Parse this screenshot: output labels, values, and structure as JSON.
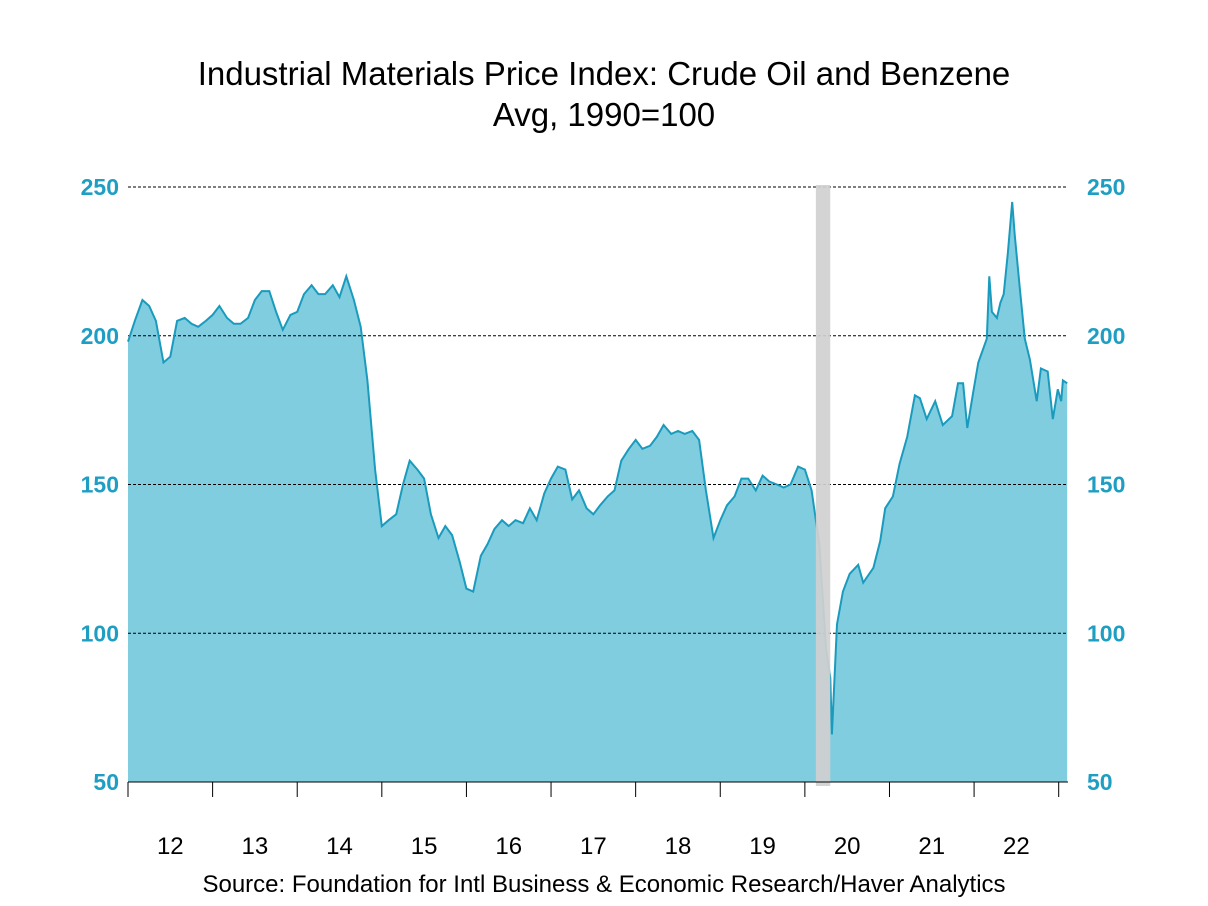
{
  "chart_data": {
    "type": "area",
    "title": "Industrial Materials Price Index: Crude Oil and Benzene",
    "subtitle": "Avg, 1990=100",
    "source": "Source:  Foundation for Intl Business & Economic Research/Haver Analytics",
    "xlabel": "",
    "ylabel": "",
    "xlim": [
      2012,
      2023.11
    ],
    "ylim": [
      50,
      250
    ],
    "y_ticks": [
      50,
      100,
      150,
      200,
      250
    ],
    "x_tick_labels": [
      "12",
      "13",
      "14",
      "15",
      "16",
      "17",
      "18",
      "19",
      "20",
      "21",
      "22"
    ],
    "grid": true,
    "dual_y_axis": true,
    "recession_shading": [
      2020.13,
      2020.3
    ],
    "colors": {
      "fill": "#80cde0",
      "line": "#1a9bbd",
      "axis_labels": "#1f9ec3",
      "recession": "#d0d0d0"
    },
    "points": [
      [
        2012.0,
        198
      ],
      [
        2012.08,
        205
      ],
      [
        2012.17,
        212
      ],
      [
        2012.25,
        210
      ],
      [
        2012.33,
        205
      ],
      [
        2012.42,
        191
      ],
      [
        2012.5,
        193
      ],
      [
        2012.58,
        205
      ],
      [
        2012.67,
        206
      ],
      [
        2012.75,
        204
      ],
      [
        2012.83,
        203
      ],
      [
        2012.92,
        205
      ],
      [
        2013.0,
        207
      ],
      [
        2013.08,
        210
      ],
      [
        2013.17,
        206
      ],
      [
        2013.25,
        204
      ],
      [
        2013.33,
        204
      ],
      [
        2013.42,
        206
      ],
      [
        2013.5,
        212
      ],
      [
        2013.58,
        215
      ],
      [
        2013.67,
        215
      ],
      [
        2013.75,
        208
      ],
      [
        2013.83,
        202
      ],
      [
        2013.92,
        207
      ],
      [
        2014.0,
        208
      ],
      [
        2014.08,
        214
      ],
      [
        2014.17,
        217
      ],
      [
        2014.25,
        214
      ],
      [
        2014.33,
        214
      ],
      [
        2014.42,
        217
      ],
      [
        2014.5,
        213
      ],
      [
        2014.58,
        220
      ],
      [
        2014.67,
        212
      ],
      [
        2014.75,
        203
      ],
      [
        2014.83,
        185
      ],
      [
        2014.92,
        155
      ],
      [
        2015.0,
        136
      ],
      [
        2015.08,
        138
      ],
      [
        2015.17,
        140
      ],
      [
        2015.25,
        150
      ],
      [
        2015.33,
        158
      ],
      [
        2015.42,
        155
      ],
      [
        2015.5,
        152
      ],
      [
        2015.58,
        140
      ],
      [
        2015.67,
        132
      ],
      [
        2015.75,
        136
      ],
      [
        2015.83,
        133
      ],
      [
        2015.92,
        124
      ],
      [
        2016.0,
        115
      ],
      [
        2016.08,
        114
      ],
      [
        2016.17,
        126
      ],
      [
        2016.25,
        130
      ],
      [
        2016.33,
        135
      ],
      [
        2016.42,
        138
      ],
      [
        2016.5,
        136
      ],
      [
        2016.58,
        138
      ],
      [
        2016.67,
        137
      ],
      [
        2016.75,
        142
      ],
      [
        2016.83,
        138
      ],
      [
        2016.92,
        147
      ],
      [
        2017.0,
        152
      ],
      [
        2017.08,
        156
      ],
      [
        2017.17,
        155
      ],
      [
        2017.25,
        145
      ],
      [
        2017.33,
        148
      ],
      [
        2017.42,
        142
      ],
      [
        2017.5,
        140
      ],
      [
        2017.58,
        143
      ],
      [
        2017.67,
        146
      ],
      [
        2017.75,
        148
      ],
      [
        2017.83,
        158
      ],
      [
        2017.92,
        162
      ],
      [
        2018.0,
        165
      ],
      [
        2018.08,
        162
      ],
      [
        2018.17,
        163
      ],
      [
        2018.25,
        166
      ],
      [
        2018.33,
        170
      ],
      [
        2018.42,
        167
      ],
      [
        2018.5,
        168
      ],
      [
        2018.58,
        167
      ],
      [
        2018.67,
        168
      ],
      [
        2018.75,
        165
      ],
      [
        2018.83,
        148
      ],
      [
        2018.92,
        132
      ],
      [
        2019.0,
        138
      ],
      [
        2019.08,
        143
      ],
      [
        2019.17,
        146
      ],
      [
        2019.25,
        152
      ],
      [
        2019.33,
        152
      ],
      [
        2019.42,
        148
      ],
      [
        2019.5,
        153
      ],
      [
        2019.58,
        151
      ],
      [
        2019.67,
        150
      ],
      [
        2019.75,
        149
      ],
      [
        2019.83,
        150
      ],
      [
        2019.92,
        156
      ],
      [
        2020.0,
        155
      ],
      [
        2020.08,
        148
      ],
      [
        2020.17,
        130
      ],
      [
        2020.25,
        95
      ],
      [
        2020.3,
        85
      ],
      [
        2020.32,
        66
      ],
      [
        2020.38,
        103
      ],
      [
        2020.45,
        114
      ],
      [
        2020.53,
        120
      ],
      [
        2020.63,
        123
      ],
      [
        2020.69,
        117
      ],
      [
        2020.81,
        122
      ],
      [
        2020.89,
        131
      ],
      [
        2020.95,
        142
      ],
      [
        2021.04,
        146
      ],
      [
        2021.12,
        157
      ],
      [
        2021.21,
        166
      ],
      [
        2021.3,
        180
      ],
      [
        2021.36,
        179
      ],
      [
        2021.44,
        172
      ],
      [
        2021.54,
        178
      ],
      [
        2021.63,
        170
      ],
      [
        2021.74,
        173
      ],
      [
        2021.81,
        184
      ],
      [
        2021.87,
        184
      ],
      [
        2021.92,
        169
      ],
      [
        2021.99,
        181
      ],
      [
        2022.05,
        191
      ],
      [
        2022.15,
        199
      ],
      [
        2022.18,
        220
      ],
      [
        2022.21,
        208
      ],
      [
        2022.27,
        206
      ],
      [
        2022.31,
        211
      ],
      [
        2022.35,
        214
      ],
      [
        2022.4,
        228
      ],
      [
        2022.45,
        245
      ],
      [
        2022.48,
        234
      ],
      [
        2022.54,
        216
      ],
      [
        2022.6,
        199
      ],
      [
        2022.66,
        192
      ],
      [
        2022.74,
        178
      ],
      [
        2022.79,
        189
      ],
      [
        2022.87,
        188
      ],
      [
        2022.93,
        172
      ],
      [
        2022.99,
        182
      ],
      [
        2023.03,
        178
      ],
      [
        2023.05,
        185
      ],
      [
        2023.1,
        184
      ]
    ]
  }
}
